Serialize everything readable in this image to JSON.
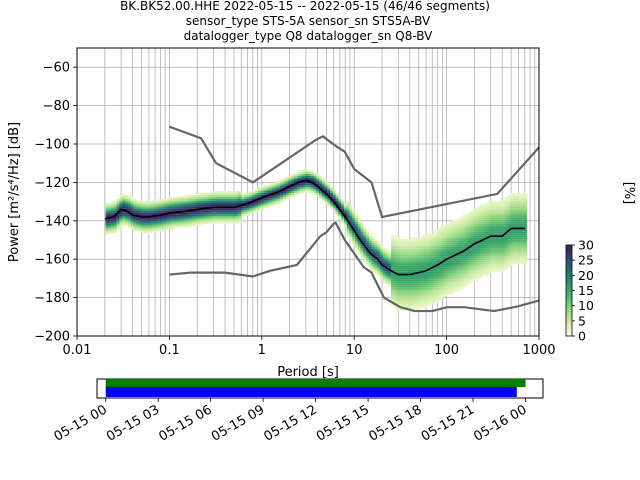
{
  "header": {
    "line1": "BK.BK52.00.HHE   2022-05-15 -- 2022-05-15  (46/46 segments)",
    "line2": "sensor_type STS-5A sensor_sn STS5A-BV",
    "line3": "datalogger_type Q8 datalogger_sn Q8-BV"
  },
  "chart_data": [
    {
      "type": "heatmap",
      "xlabel": "Period [s]",
      "ylabel": "Power [m²/s⁴/Hz] [dB]",
      "xscale": "log",
      "xlim": [
        0.01,
        1000
      ],
      "ylim": [
        -200,
        -50
      ],
      "xticks": [
        {
          "v": 0.01,
          "label": "0.01"
        },
        {
          "v": 0.1,
          "label": "0.1"
        },
        {
          "v": 1,
          "label": "1"
        },
        {
          "v": 10,
          "label": "10"
        },
        {
          "v": 100,
          "label": "100"
        },
        {
          "v": 1000,
          "label": "1000"
        }
      ],
      "yticks": [
        {
          "v": -60,
          "label": "−60"
        },
        {
          "v": -80,
          "label": "−80"
        },
        {
          "v": -100,
          "label": "−100"
        },
        {
          "v": -120,
          "label": "−120"
        },
        {
          "v": -140,
          "label": "−140"
        },
        {
          "v": -160,
          "label": "−160"
        },
        {
          "v": -180,
          "label": "−180"
        },
        {
          "v": -200,
          "label": "−200"
        }
      ],
      "grid": true,
      "colorbar": {
        "label": "[%]",
        "range": [
          0,
          30
        ],
        "ticks": [
          {
            "v": 0,
            "label": "0"
          },
          {
            "v": 5,
            "label": "5"
          },
          {
            "v": 10,
            "label": "10"
          },
          {
            "v": 15,
            "label": "15"
          },
          {
            "v": 20,
            "label": "20"
          },
          {
            "v": 25,
            "label": "25"
          },
          {
            "v": 30,
            "label": "30"
          }
        ],
        "colors": [
          "#ffffe0",
          "#c7e9a0",
          "#7fcf78",
          "#3aa86a",
          "#1f7f74",
          "#2d4f7c",
          "#3b1f54"
        ]
      },
      "high_noise_model": [
        [
          0.1,
          -91
        ],
        [
          0.22,
          -97
        ],
        [
          0.32,
          -110
        ],
        [
          0.8,
          -120
        ],
        [
          3.8,
          -98
        ],
        [
          4.6,
          -96
        ],
        [
          6.3,
          -101
        ],
        [
          7.9,
          -104
        ],
        [
          10,
          -113
        ],
        [
          15.4,
          -120
        ],
        [
          20,
          -138
        ],
        [
          354,
          -126
        ],
        [
          10000,
          -48
        ]
      ],
      "low_noise_model": [
        [
          0.1,
          -168
        ],
        [
          0.17,
          -167
        ],
        [
          0.4,
          -167
        ],
        [
          0.8,
          -169
        ],
        [
          1.24,
          -166
        ],
        [
          2.4,
          -163
        ],
        [
          4.3,
          -148
        ],
        [
          5,
          -146
        ],
        [
          6,
          -141.5
        ],
        [
          6.3,
          -141
        ],
        [
          7.9,
          -150
        ],
        [
          10,
          -157
        ],
        [
          12.6,
          -164
        ],
        [
          15.4,
          -167
        ],
        [
          20,
          -178
        ],
        [
          21,
          -180
        ],
        [
          31.6,
          -185
        ],
        [
          45,
          -187
        ],
        [
          70,
          -187
        ],
        [
          101,
          -185
        ],
        [
          154,
          -185
        ],
        [
          328,
          -187
        ],
        [
          600,
          -184.5
        ],
        [
          10000,
          -168
        ]
      ],
      "mode_curve": [
        [
          0.02,
          -139
        ],
        [
          0.025,
          -138
        ],
        [
          0.03,
          -134
        ],
        [
          0.035,
          -135
        ],
        [
          0.04,
          -137
        ],
        [
          0.05,
          -138
        ],
        [
          0.06,
          -138
        ],
        [
          0.08,
          -137
        ],
        [
          0.1,
          -136
        ],
        [
          0.15,
          -135
        ],
        [
          0.2,
          -134
        ],
        [
          0.3,
          -133
        ],
        [
          0.4,
          -133
        ],
        [
          0.5,
          -133
        ],
        [
          0.7,
          -131
        ],
        [
          1,
          -128
        ],
        [
          1.5,
          -125
        ],
        [
          2,
          -122
        ],
        [
          2.5,
          -120
        ],
        [
          3,
          -119
        ],
        [
          3.5,
          -120
        ],
        [
          4,
          -122
        ],
        [
          5,
          -126
        ],
        [
          6,
          -130
        ],
        [
          8,
          -138
        ],
        [
          10,
          -145
        ],
        [
          12,
          -151
        ],
        [
          15,
          -157
        ],
        [
          18,
          -160
        ],
        [
          20,
          -163
        ],
        [
          25,
          -166
        ],
        [
          30,
          -168
        ],
        [
          40,
          -168
        ],
        [
          50,
          -167
        ],
        [
          60,
          -166
        ],
        [
          80,
          -163
        ],
        [
          100,
          -160
        ],
        [
          150,
          -156
        ],
        [
          200,
          -152
        ],
        [
          300,
          -148
        ],
        [
          400,
          -148
        ],
        [
          500,
          -144
        ],
        [
          700,
          -144
        ]
      ]
    },
    {
      "type": "timeline",
      "xticks": [
        "05-15 00",
        "05-15 03",
        "05-15 06",
        "05-15 09",
        "05-15 12",
        "05-15 15",
        "05-15 18",
        "05-15 21",
        "05-16 00"
      ],
      "xlim_hours": [
        -0.5,
        25
      ],
      "bars": [
        {
          "start_h": 0,
          "end_h": 24.0,
          "color": "#008000"
        },
        {
          "start_h": 0,
          "end_h": 23.5,
          "color": "#0000ff"
        }
      ]
    }
  ]
}
